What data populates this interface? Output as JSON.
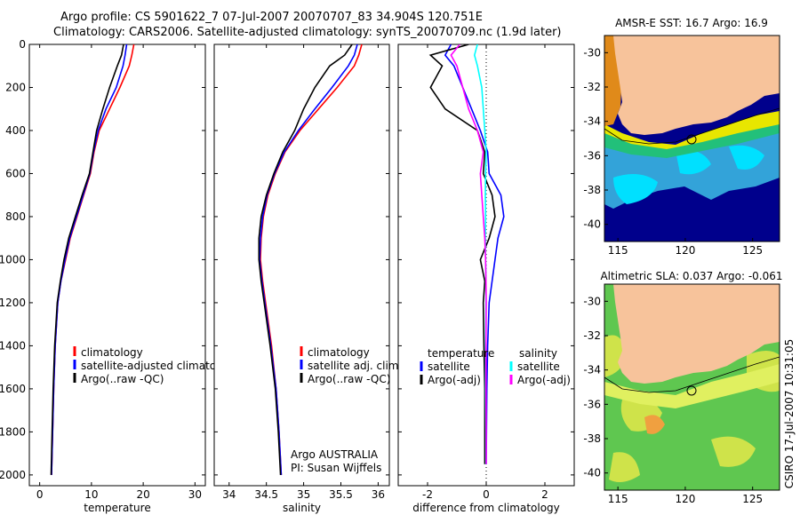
{
  "header": {
    "line1": "Argo profile: CS 5901622_7 07-Jul-2007 20070707_83 34.904S 120.751E",
    "line2": "Climatology: CARS2006. Satellite-adjusted climatology: synTS_20070709.nc (1.9d later)"
  },
  "side_stamp": "CSIRO 17-Jul-2007 10:31:05",
  "colors": {
    "red": "#ff0000",
    "blue": "#0000ff",
    "black": "#000000",
    "cyan": "#00ffff",
    "magenta": "#ff00ff",
    "land": "#f7c39b",
    "sst_ocean": "#0000a0",
    "sla_ocean": "#5fc750"
  },
  "chart_data": [
    {
      "id": "temperature",
      "type": "line",
      "xlabel": "temperature",
      "xlim": [
        -2,
        32
      ],
      "xticks": [
        "0",
        "10",
        "20",
        "30"
      ],
      "xtick_values": [
        0,
        10,
        20,
        30
      ],
      "ylim": [
        2050,
        0
      ],
      "yticks": [
        "0",
        "200",
        "400",
        "600",
        "800",
        "1000",
        "1200",
        "1400",
        "1600",
        "1800",
        "2000"
      ],
      "ytick_values": [
        0,
        200,
        400,
        600,
        800,
        1000,
        1200,
        1400,
        1600,
        1800,
        2000
      ],
      "legend": [
        "climatology",
        "satellite-adjusted climatology",
        "Argo(..raw -QC)"
      ],
      "series": [
        {
          "name": "climatology",
          "color": "red",
          "depth": [
            0,
            50,
            100,
            200,
            300,
            400,
            500,
            600,
            700,
            800,
            900,
            1000,
            1100,
            1200,
            1400,
            1600,
            1800,
            2000
          ],
          "values": [
            18.2,
            17.8,
            17.3,
            15.5,
            13.5,
            11.5,
            10.5,
            9.8,
            8.5,
            7.2,
            5.9,
            5.0,
            4.1,
            3.5,
            3.0,
            2.7,
            2.5,
            2.3
          ]
        },
        {
          "name": "satellite-adjusted climatology",
          "color": "blue",
          "depth": [
            0,
            50,
            100,
            200,
            300,
            400,
            500,
            600,
            700,
            800,
            900,
            1000,
            1100,
            1200,
            1400,
            1600,
            1800,
            2000
          ],
          "values": [
            16.8,
            16.5,
            16.1,
            14.8,
            12.8,
            11.3,
            10.4,
            9.7,
            8.4,
            7.1,
            5.8,
            4.9,
            4.1,
            3.5,
            3.0,
            2.7,
            2.5,
            2.3
          ]
        },
        {
          "name": "Argo(..raw -QC)",
          "color": "black",
          "depth": [
            0,
            50,
            100,
            200,
            300,
            400,
            500,
            600,
            700,
            800,
            900,
            1000,
            1100,
            1200,
            1400,
            1600,
            1800,
            2000
          ],
          "values": [
            16.2,
            15.8,
            15.0,
            13.5,
            12.2,
            11.0,
            10.3,
            9.6,
            8.2,
            6.9,
            5.6,
            4.7,
            4.0,
            3.4,
            2.9,
            2.6,
            2.4,
            2.2
          ]
        }
      ]
    },
    {
      "id": "salinity",
      "type": "line",
      "xlabel": "salinity",
      "xlim": [
        33.8,
        36.15
      ],
      "xticks": [
        "34",
        "34.5",
        "35",
        "35.5",
        "36"
      ],
      "xtick_values": [
        34,
        34.5,
        35,
        35.5,
        36
      ],
      "ylim": [
        2050,
        0
      ],
      "legend": [
        "climatology",
        "satellite adj. clim.",
        "Argo(..raw -QC)"
      ],
      "annotation": [
        "Argo AUSTRALIA",
        "PI: Susan Wijffels"
      ],
      "series": [
        {
          "name": "climatology",
          "color": "red",
          "depth": [
            0,
            50,
            100,
            200,
            300,
            400,
            500,
            600,
            700,
            800,
            900,
            1000,
            1100,
            1200,
            1400,
            1600,
            1800,
            2000
          ],
          "values": [
            35.78,
            35.74,
            35.68,
            35.45,
            35.2,
            34.95,
            34.75,
            34.62,
            34.52,
            34.46,
            34.43,
            34.42,
            34.45,
            34.49,
            34.57,
            34.63,
            34.67,
            34.7
          ]
        },
        {
          "name": "satellite adj. clim.",
          "color": "blue",
          "depth": [
            0,
            50,
            100,
            200,
            300,
            400,
            500,
            600,
            700,
            800,
            900,
            1000,
            1100,
            1200,
            1400,
            1600,
            1800,
            2000
          ],
          "values": [
            35.72,
            35.68,
            35.6,
            35.38,
            35.15,
            34.93,
            34.74,
            34.61,
            34.51,
            34.45,
            34.42,
            34.41,
            34.44,
            34.48,
            34.56,
            34.63,
            34.67,
            34.7
          ]
        },
        {
          "name": "Argo(..raw -QC)",
          "color": "black",
          "depth": [
            0,
            50,
            100,
            200,
            300,
            400,
            500,
            600,
            700,
            800,
            900,
            1000,
            1100,
            1200,
            1400,
            1600,
            1800,
            2000
          ],
          "values": [
            35.65,
            35.55,
            35.35,
            35.15,
            35.0,
            34.88,
            34.72,
            34.6,
            34.5,
            34.43,
            34.4,
            34.4,
            34.43,
            34.47,
            34.55,
            34.62,
            34.66,
            34.69
          ]
        }
      ]
    },
    {
      "id": "difference",
      "type": "line",
      "xlabel": "difference from climatology",
      "xlim": [
        -3,
        3
      ],
      "xticks": [
        "-2",
        "0",
        "2"
      ],
      "xtick_values": [
        -2,
        0,
        2
      ],
      "ylim": [
        2050,
        0
      ],
      "zero_line": true,
      "legend_left": {
        "title": "temperature",
        "items": [
          "satellite",
          "Argo(-adj)"
        ]
      },
      "legend_right": {
        "title": "salinity",
        "items": [
          "satellite",
          "Argo(-adj)"
        ]
      },
      "series": [
        {
          "name": "temperature satellite",
          "color": "blue",
          "depth": [
            0,
            50,
            100,
            200,
            300,
            400,
            500,
            600,
            700,
            800,
            900,
            1000,
            1100,
            1200,
            1400,
            1600,
            1800,
            1950
          ],
          "values": [
            -1.2,
            -1.4,
            -1.1,
            -0.8,
            -0.5,
            -0.2,
            0.05,
            0.1,
            0.5,
            0.6,
            0.4,
            0.3,
            0.2,
            0.1,
            0.05,
            0.02,
            0.01,
            0.0
          ]
        },
        {
          "name": "temperature Argo(-adj)",
          "color": "black",
          "depth": [
            0,
            50,
            100,
            200,
            300,
            400,
            500,
            600,
            700,
            800,
            900,
            1000,
            1100,
            1200,
            1400,
            1600,
            1800,
            1950
          ],
          "values": [
            -0.6,
            -1.9,
            -1.5,
            -1.9,
            -1.4,
            -0.3,
            -0.05,
            -0.1,
            0.2,
            0.3,
            0.1,
            -0.2,
            -0.05,
            -0.1,
            -0.08,
            -0.05,
            -0.05,
            -0.05
          ]
        },
        {
          "name": "salinity satellite",
          "color": "cyan",
          "depth": [
            0,
            50,
            100,
            200,
            300,
            400,
            500,
            600,
            700,
            800,
            900,
            1000,
            1100,
            1200,
            1400,
            1600,
            1800,
            1950
          ],
          "values": [
            -0.3,
            -0.4,
            -0.3,
            -0.15,
            -0.1,
            -0.05,
            0.0,
            -0.02,
            -0.03,
            -0.02,
            -0.03,
            -0.02,
            -0.01,
            -0.01,
            -0.02,
            -0.02,
            -0.01,
            -0.01
          ]
        },
        {
          "name": "salinity Argo(-adj)",
          "color": "magenta",
          "depth": [
            0,
            50,
            100,
            200,
            300,
            400,
            500,
            600,
            700,
            800,
            900,
            1000,
            1100,
            1200,
            1400,
            1600,
            1800,
            1950
          ],
          "values": [
            -0.9,
            -1.2,
            -1.0,
            -0.8,
            -0.6,
            -0.3,
            -0.1,
            -0.2,
            -0.15,
            -0.1,
            -0.05,
            -0.02,
            -0.01,
            0.0,
            -0.01,
            -0.01,
            0.0,
            0.0
          ]
        }
      ]
    },
    {
      "id": "sst_map",
      "type": "heatmap",
      "title": "AMSR-E SST: 16.7 Argo: 16.9",
      "xticks": [
        "115",
        "120",
        "125"
      ],
      "yticks": [
        "-30",
        "-32",
        "-34",
        "-36",
        "-38",
        "-40"
      ],
      "xlim": [
        114,
        127
      ],
      "ylim": [
        -41,
        -29
      ],
      "profile_location": [
        120.751,
        -34.904
      ]
    },
    {
      "id": "sla_map",
      "type": "heatmap",
      "title": "Altimetric SLA: 0.037 Argo: -0.061",
      "xticks": [
        "115",
        "120",
        "125"
      ],
      "yticks": [
        "-30",
        "-32",
        "-34",
        "-36",
        "-38",
        "-40"
      ],
      "xlim": [
        114,
        127
      ],
      "ylim": [
        -41,
        -29
      ],
      "profile_location": [
        120.751,
        -34.904
      ]
    }
  ]
}
